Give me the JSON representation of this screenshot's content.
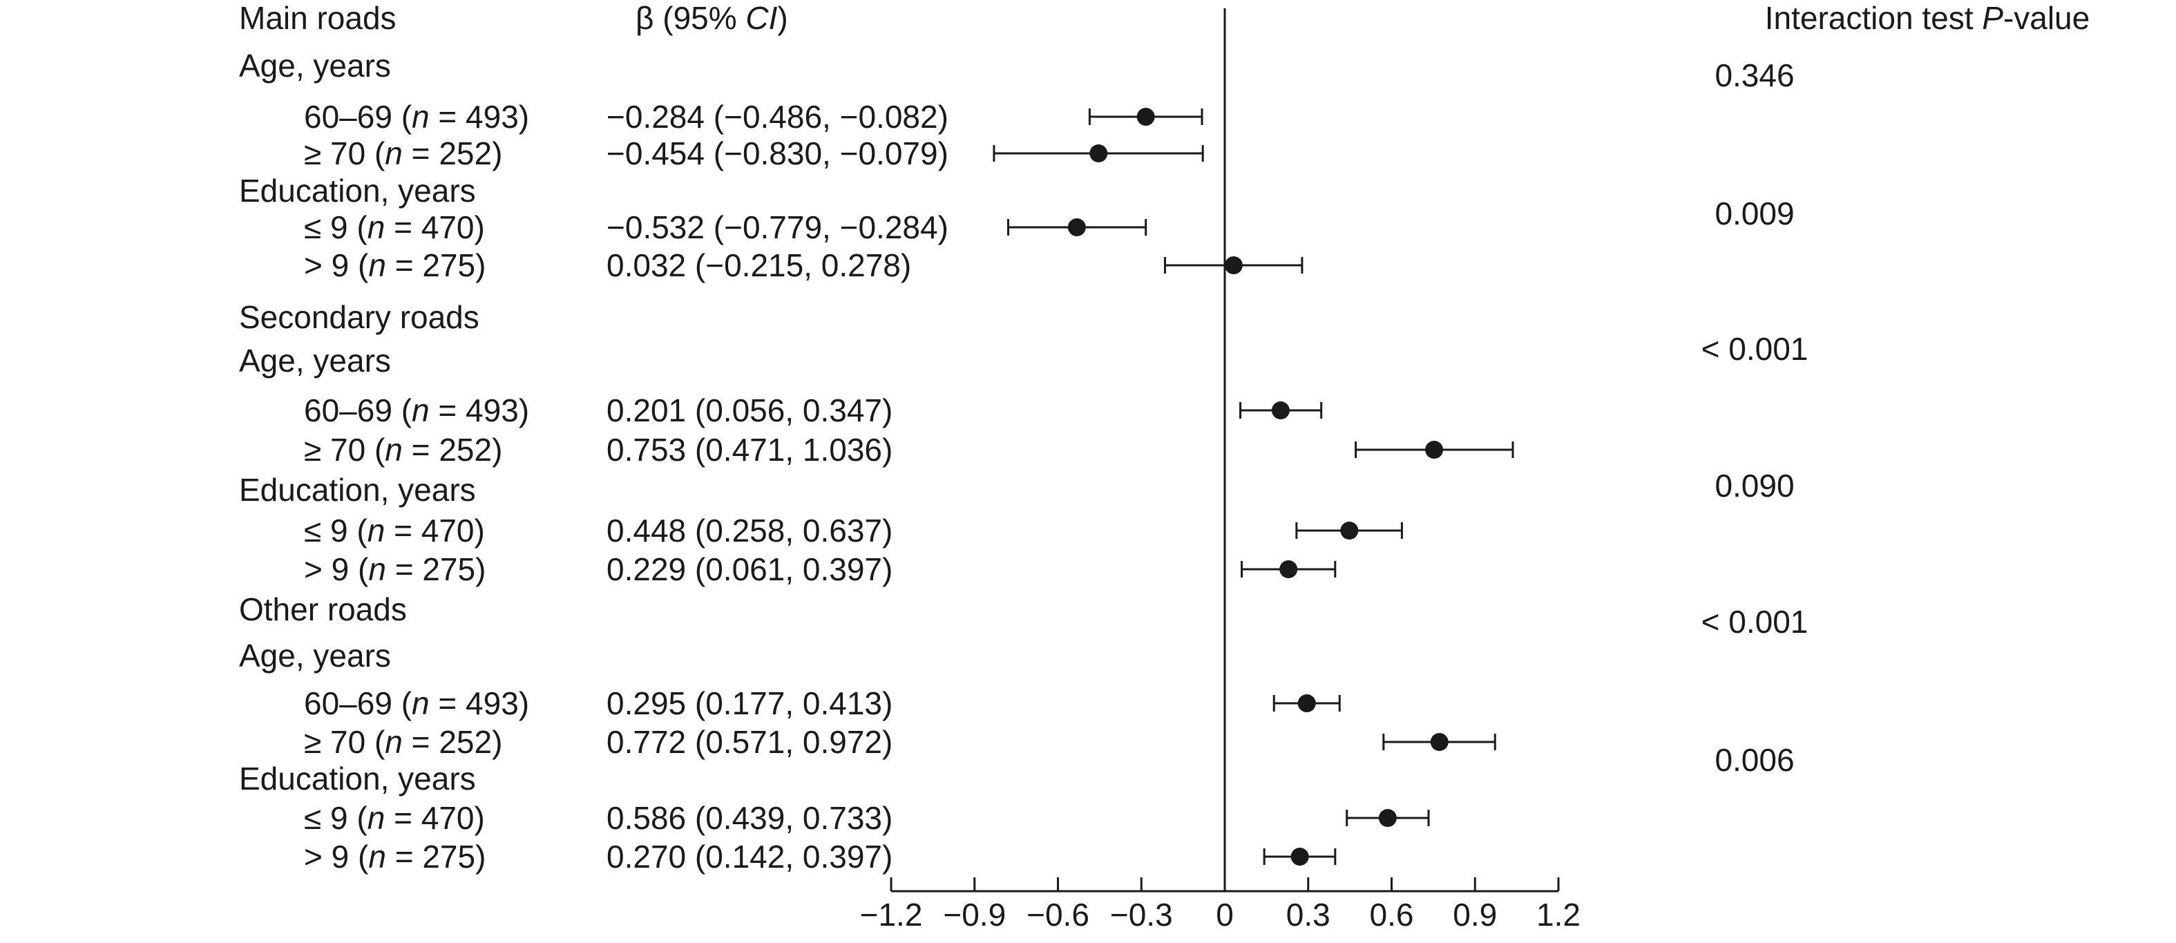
{
  "chart_data": {
    "type": "forest",
    "header_label": "Main roads",
    "beta_header": {
      "symbol": "β",
      "pre": " (95% ",
      "ci": "CI",
      "post": ")"
    },
    "pvalue_header": {
      "pre": "Interaction test ",
      "p": "P",
      "post": "-value"
    },
    "xticks": [
      "−1.2",
      "−0.9",
      "−0.6",
      "−0.3",
      "0",
      "0.3",
      "0.6",
      "0.9",
      "1.2"
    ],
    "xlim": [
      -1.2,
      1.2
    ],
    "rows": [
      {
        "kind": "group",
        "text": "Age, years"
      },
      {
        "kind": "item",
        "pre": "60–69 (",
        "n": "n",
        "post": " = 493)",
        "ci_text": "−0.284 (−0.486, −0.082)",
        "beta": -0.284,
        "lo": -0.486,
        "hi": -0.082
      },
      {
        "kind": "item",
        "pre": "≥ 70 (",
        "n": "n",
        "post": " = 252)",
        "ci_text": "−0.454 (−0.830, −0.079)",
        "beta": -0.454,
        "lo": -0.83,
        "hi": -0.079
      },
      {
        "kind": "group",
        "text": "Education, years"
      },
      {
        "kind": "item",
        "pre": "≤ 9 (",
        "n": "n",
        "post": " = 470)",
        "ci_text": "−0.532 (−0.779, −0.284)",
        "beta": -0.532,
        "lo": -0.779,
        "hi": -0.284
      },
      {
        "kind": "item",
        "pre": "> 9 (",
        "n": "n",
        "post": " = 275)",
        "ci_text": "0.032 (−0.215, 0.278)",
        "beta": 0.032,
        "lo": -0.215,
        "hi": 0.278
      },
      {
        "kind": "section",
        "text": "Secondary roads"
      },
      {
        "kind": "group",
        "text": "Age, years"
      },
      {
        "kind": "item",
        "pre": "60–69 (",
        "n": "n",
        "post": " = 493)",
        "ci_text": "0.201 (0.056, 0.347)",
        "beta": 0.201,
        "lo": 0.056,
        "hi": 0.347
      },
      {
        "kind": "item",
        "pre": "≥ 70 (",
        "n": "n",
        "post": " = 252)",
        "ci_text": "0.753 (0.471, 1.036)",
        "beta": 0.753,
        "lo": 0.471,
        "hi": 1.036
      },
      {
        "kind": "group",
        "text": "Education, years"
      },
      {
        "kind": "item",
        "pre": "≤ 9 (",
        "n": "n",
        "post": " = 470)",
        "ci_text": "0.448 (0.258, 0.637)",
        "beta": 0.448,
        "lo": 0.258,
        "hi": 0.637
      },
      {
        "kind": "item",
        "pre": "> 9 (",
        "n": "n",
        "post": " = 275)",
        "ci_text": "0.229 (0.061, 0.397)",
        "beta": 0.229,
        "lo": 0.061,
        "hi": 0.397
      },
      {
        "kind": "section",
        "text": "Other roads"
      },
      {
        "kind": "group",
        "text": "Age, years"
      },
      {
        "kind": "item",
        "pre": "60–69 (",
        "n": "n",
        "post": " = 493)",
        "ci_text": "0.295 (0.177, 0.413)",
        "beta": 0.295,
        "lo": 0.177,
        "hi": 0.413
      },
      {
        "kind": "item",
        "pre": "≥ 70 (",
        "n": "n",
        "post": " = 252)",
        "ci_text": "0.772 (0.571, 0.972)",
        "beta": 0.772,
        "lo": 0.571,
        "hi": 0.972
      },
      {
        "kind": "group",
        "text": "Education, years"
      },
      {
        "kind": "item",
        "pre": "≤ 9 (",
        "n": "n",
        "post": " = 470)",
        "ci_text": "0.586 (0.439, 0.733)",
        "beta": 0.586,
        "lo": 0.439,
        "hi": 0.733
      },
      {
        "kind": "item",
        "pre": "> 9 (",
        "n": "n",
        "post": " = 275)",
        "ci_text": "0.270 (0.142, 0.397)",
        "beta": 0.27,
        "lo": 0.142,
        "hi": 0.397
      }
    ],
    "pvalues": [
      "0.346",
      "0.009",
      "< 0.001",
      "0.090",
      "< 0.001",
      "0.006"
    ],
    "colors": {
      "ink": "#1a1a1a"
    }
  }
}
